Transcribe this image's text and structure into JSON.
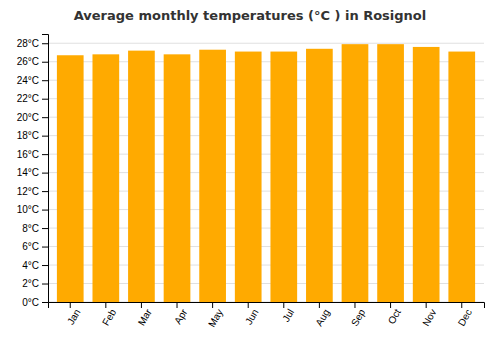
{
  "chart_data": {
    "type": "bar",
    "title": "Average monthly temperatures (°C ) in Rosignol",
    "categories": [
      "Jan",
      "Feb",
      "Mar",
      "Apr",
      "May",
      "Jun",
      "Jul",
      "Aug",
      "Sep",
      "Oct",
      "Nov",
      "Dec"
    ],
    "values": [
      26.7,
      26.8,
      27.2,
      26.8,
      27.3,
      27.1,
      27.1,
      27.4,
      27.9,
      27.9,
      27.6,
      27.1
    ],
    "color": "#FFAA00",
    "ylim": [
      0,
      29
    ],
    "yticks": [
      {
        "value": 0,
        "label": "0°C"
      },
      {
        "value": 2,
        "label": "2°C"
      },
      {
        "value": 4,
        "label": "4°C"
      },
      {
        "value": 6,
        "label": "6°C"
      },
      {
        "value": 8,
        "label": "8°C"
      },
      {
        "value": 10,
        "label": "10°C"
      },
      {
        "value": 12,
        "label": "12°C"
      },
      {
        "value": 14,
        "label": "14°C"
      },
      {
        "value": 16,
        "label": "16°C"
      },
      {
        "value": 18,
        "label": "18°C"
      },
      {
        "value": 20,
        "label": "20°C"
      },
      {
        "value": 22,
        "label": "22°C"
      },
      {
        "value": 24,
        "label": "24°C"
      },
      {
        "value": 26,
        "label": "26°C"
      },
      {
        "value": 28,
        "label": "28°C"
      }
    ],
    "grid": true
  }
}
